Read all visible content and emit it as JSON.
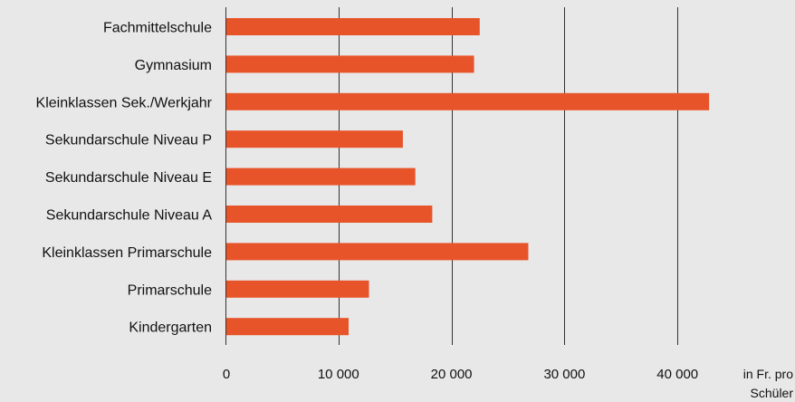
{
  "chart_data": {
    "type": "bar",
    "orientation": "horizontal",
    "categories": [
      "Fachmittelschule",
      "Gymnasium",
      "Kleinklassen Sek./Werkjahr",
      "Sekundarschule Niveau P",
      "Sekundarschule Niveau E",
      "Sekundarschule Niveau A",
      "Kleinklassen Primarschule",
      "Primarschule",
      "Kindergarten"
    ],
    "values": [
      22500,
      22000,
      42800,
      15700,
      16800,
      18300,
      26800,
      12700,
      10900
    ],
    "xlim": [
      0,
      50000
    ],
    "xticks": [
      0,
      10000,
      20000,
      30000,
      40000
    ],
    "xtick_labels": [
      "0",
      "10 000",
      "20 000",
      "30 000",
      "40 000"
    ],
    "xlabel": "in Fr. pro Schüler",
    "grid": "vertical",
    "colors": {
      "bar": "#e8542a",
      "background": "#e8e8e8",
      "grid": "#333333"
    }
  }
}
